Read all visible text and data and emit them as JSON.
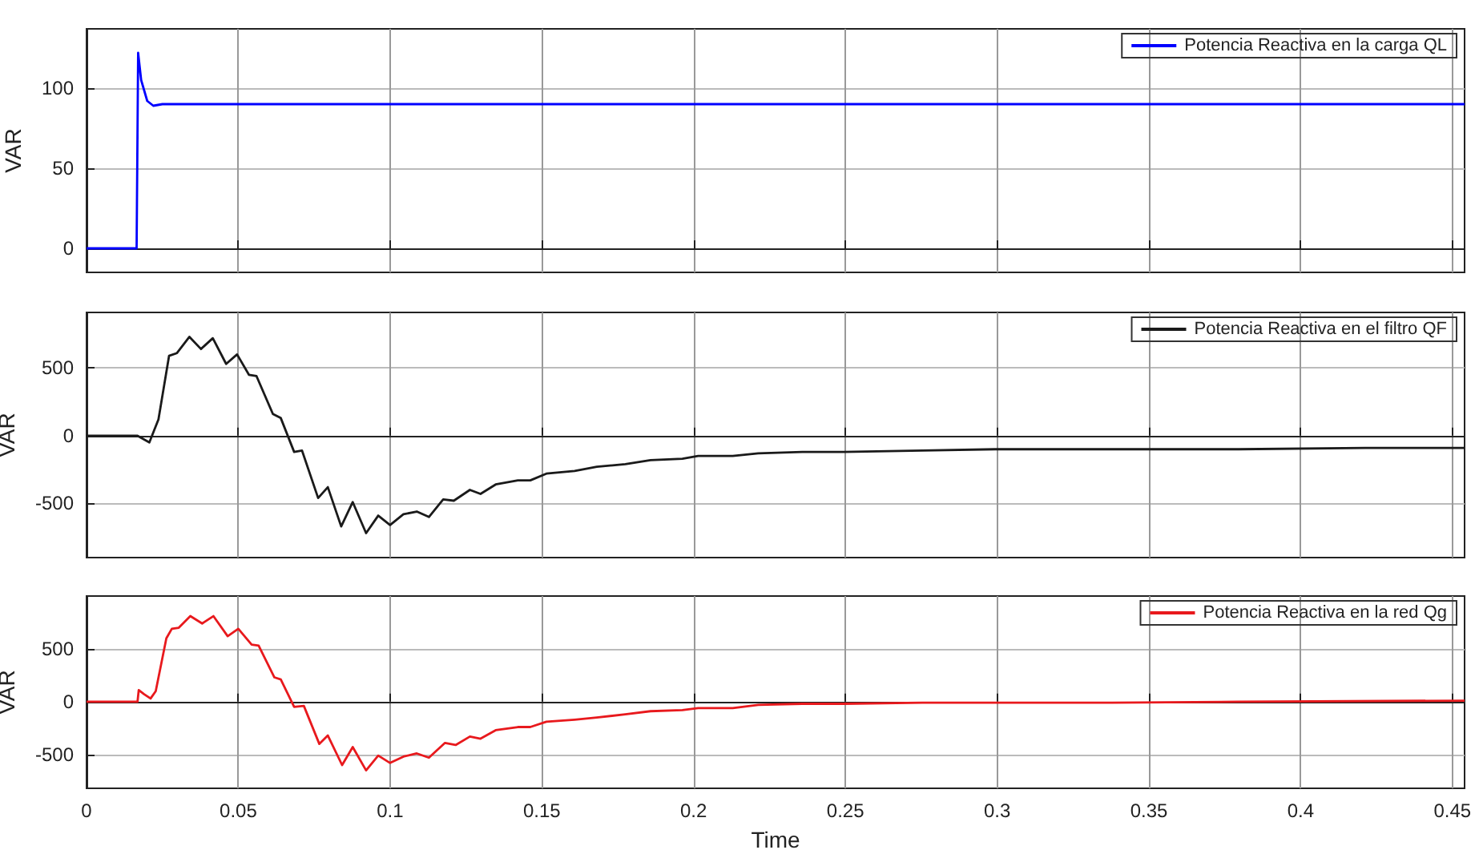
{
  "chart_data": [
    {
      "type": "line",
      "ylabel": "VAR",
      "xlim": [
        0,
        0.454
      ],
      "xticks": [
        0,
        0.05,
        0.1,
        0.15,
        0.2,
        0.25,
        0.3,
        0.35,
        0.4,
        0.45
      ],
      "ylim": [
        -15,
        137
      ],
      "yticks": [
        0,
        50,
        100
      ],
      "tick_labels": "y",
      "grid": true,
      "legend": "top right",
      "marker": "none",
      "line_style": "solid",
      "series": [
        {
          "name": "Potencia Reactiva en la carga QL",
          "color": "#0000ff",
          "x": [
            0,
            0.008,
            0.0165,
            0.017,
            0.018,
            0.02,
            0.022,
            0.025,
            0.1,
            0.2,
            0.3,
            0.4,
            0.454
          ],
          "values": [
            0,
            0,
            0,
            122,
            105,
            92,
            89,
            90,
            90,
            90,
            90,
            90,
            90
          ]
        }
      ]
    },
    {
      "type": "line",
      "ylabel": "VAR",
      "xlim": [
        0,
        0.454
      ],
      "xticks": [
        0,
        0.05,
        0.1,
        0.15,
        0.2,
        0.25,
        0.3,
        0.35,
        0.4,
        0.45
      ],
      "ylim": [
        -900,
        910
      ],
      "yticks": [
        -500,
        0,
        500
      ],
      "tick_labels": "y",
      "grid": true,
      "legend": "top right",
      "marker": "none",
      "line_style": "solid",
      "series": [
        {
          "name": "Potencia Reactiva en el filtro QF",
          "color": "#1a1a1a",
          "x": [
            0,
            0.0167,
            0.0207,
            0.0237,
            0.0272,
            0.0298,
            0.0339,
            0.0377,
            0.0416,
            0.046,
            0.0496,
            0.0535,
            0.056,
            0.0614,
            0.064,
            0.0684,
            0.071,
            0.0763,
            0.0795,
            0.0839,
            0.0877,
            0.0921,
            0.0961,
            0.1,
            0.1044,
            0.1088,
            0.1128,
            0.1175,
            0.121,
            0.1263,
            0.1298,
            0.1348,
            0.1421,
            0.1462,
            0.1515,
            0.1608,
            0.1681,
            0.1775,
            0.1858,
            0.1963,
            0.2015,
            0.2129,
            0.2213,
            0.2358,
            0.2494,
            0.2754,
            0.2994,
            0.3379,
            0.3796,
            0.4213,
            0.454
          ],
          "values": [
            0,
            0,
            -50,
            120,
            590,
            610,
            730,
            640,
            720,
            530,
            600,
            450,
            440,
            160,
            130,
            -120,
            -110,
            -460,
            -380,
            -670,
            -490,
            -720,
            -590,
            -660,
            -580,
            -560,
            -600,
            -470,
            -480,
            -400,
            -430,
            -360,
            -330,
            -330,
            -280,
            -260,
            -230,
            -210,
            -180,
            -170,
            -150,
            -150,
            -130,
            -120,
            -120,
            -110,
            -100,
            -100,
            -100,
            -90,
            -90
          ]
        }
      ]
    },
    {
      "type": "line",
      "ylabel": "VAR",
      "xlabel": "Time",
      "xlim": [
        0,
        0.454
      ],
      "xticks": [
        0,
        0.05,
        0.1,
        0.15,
        0.2,
        0.25,
        0.3,
        0.35,
        0.4,
        0.45
      ],
      "ylim": [
        -820,
        1000
      ],
      "yticks": [
        -500,
        0,
        500
      ],
      "grid": true,
      "legend": "top right",
      "marker": "none",
      "line_style": "solid",
      "series": [
        {
          "name": "Potencia Reactiva en la red Qg",
          "color": "#e8191d",
          "x": [
            0,
            0.0168,
            0.0172,
            0.019,
            0.0211,
            0.0228,
            0.0263,
            0.0281,
            0.0304,
            0.0342,
            0.0381,
            0.0418,
            0.0465,
            0.05,
            0.0544,
            0.0567,
            0.0619,
            0.064,
            0.0684,
            0.0716,
            0.0767,
            0.0795,
            0.0842,
            0.0877,
            0.0921,
            0.0961,
            0.1,
            0.1044,
            0.1088,
            0.1128,
            0.1181,
            0.1216,
            0.1263,
            0.1298,
            0.1348,
            0.1421,
            0.1462,
            0.1515,
            0.1608,
            0.1681,
            0.1775,
            0.1858,
            0.1963,
            0.2015,
            0.2129,
            0.2213,
            0.2358,
            0.2494,
            0.2754,
            0.2994,
            0.3379,
            0.3796,
            0.454
          ],
          "values": [
            0,
            0,
            110,
            70,
            30,
            100,
            600,
            690,
            700,
            810,
            740,
            810,
            620,
            690,
            540,
            530,
            230,
            210,
            -50,
            -40,
            -400,
            -320,
            -600,
            -430,
            -650,
            -510,
            -580,
            -520,
            -490,
            -530,
            -390,
            -410,
            -330,
            -350,
            -270,
            -240,
            -240,
            -190,
            -170,
            -150,
            -120,
            -90,
            -80,
            -60,
            -60,
            -30,
            -20,
            -20,
            -10,
            -10,
            -10,
            0,
            10
          ]
        }
      ]
    }
  ]
}
